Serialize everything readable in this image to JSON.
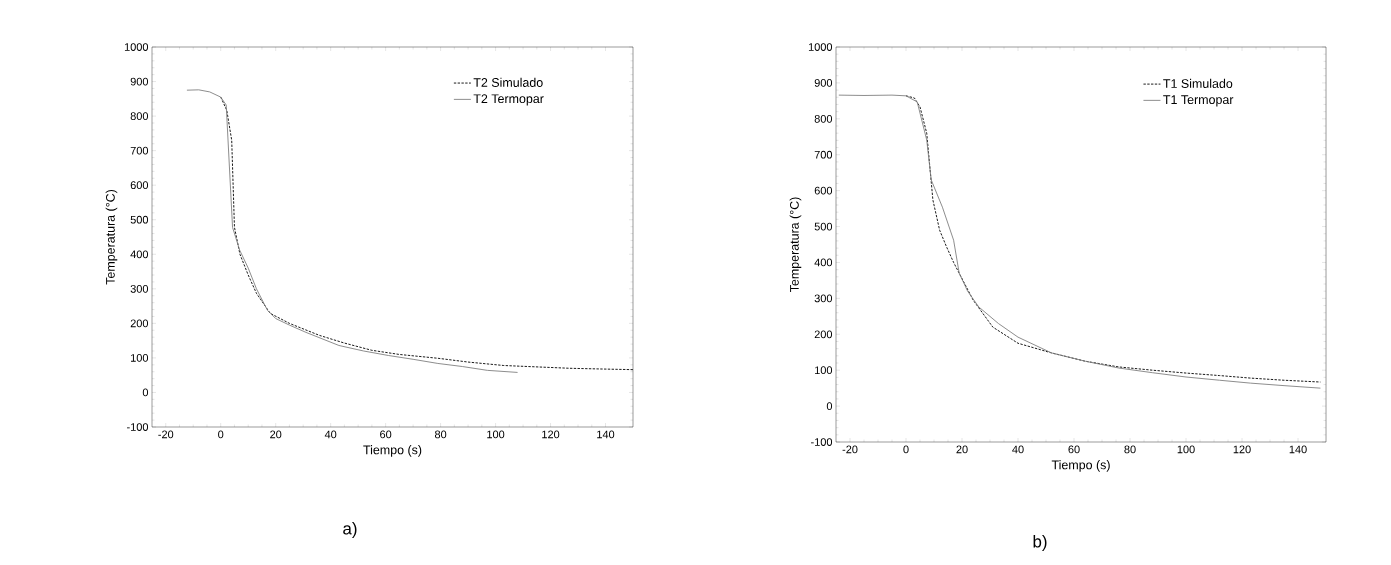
{
  "chart_data": [
    {
      "type": "line",
      "xlabel": "Tiempo (s)",
      "ylabel": "Temperatura (°C)",
      "annotations": [
        "a)"
      ],
      "xlim": [
        -25,
        150
      ],
      "ylim": [
        -100,
        1000
      ],
      "xticks": [
        -20,
        0,
        20,
        40,
        60,
        80,
        100,
        120,
        140
      ],
      "yticks": [
        -100,
        0,
        100,
        200,
        300,
        400,
        500,
        600,
        700,
        800,
        900,
        1000
      ],
      "legend": "top right",
      "grid": false,
      "series": [
        {
          "name": "T2 Simulado",
          "color": "#000000",
          "line_style": "dashed",
          "x": [
            0,
            2.2,
            4,
            5,
            7,
            10,
            13,
            18,
            25,
            36,
            45,
            55,
            65,
            79,
            90,
            103,
            115,
            127,
            138,
            150
          ],
          "values": [
            855,
            817,
            730,
            478,
            400,
            340,
            287,
            229,
            200,
            165,
            143,
            122,
            110,
            99,
            88,
            78,
            74,
            70,
            68,
            66
          ]
        },
        {
          "name": "T2 Termopar",
          "color": "#808080",
          "line_style": "solid",
          "x": [
            -12.3,
            -8,
            -4,
            0,
            2,
            4.3,
            6.9,
            10,
            13,
            17,
            20,
            25,
            31,
            43,
            52,
            61,
            70,
            79,
            88,
            97,
            108
          ],
          "values": [
            875,
            876,
            870,
            855,
            832,
            478,
            412,
            360,
            300,
            238,
            214,
            195,
            174,
            136,
            120,
            107,
            96,
            84,
            75,
            64,
            58
          ]
        }
      ]
    },
    {
      "type": "line",
      "xlabel": "Tiempo (s)",
      "ylabel": "Temperatura (°C)",
      "annotations": [
        "b)"
      ],
      "xlim": [
        -25,
        150
      ],
      "ylim": [
        -100,
        1000
      ],
      "xticks": [
        -20,
        0,
        20,
        40,
        60,
        80,
        100,
        120,
        140
      ],
      "yticks": [
        -100,
        0,
        100,
        200,
        300,
        400,
        500,
        600,
        700,
        800,
        900,
        1000
      ],
      "legend": "top right",
      "grid": false,
      "series": [
        {
          "name": "T1 Simulado",
          "color": "#000000",
          "line_style": "dashed",
          "x": [
            0,
            3,
            5,
            7.4,
            9.6,
            12,
            14.5,
            17,
            19,
            24,
            31,
            40,
            52,
            64,
            76,
            88,
            100,
            112,
            123,
            135,
            148
          ],
          "values": [
            864,
            858,
            833,
            760,
            574,
            490,
            443,
            400,
            370,
            295,
            220,
            175,
            148,
            125,
            109,
            100,
            92,
            85,
            78,
            72,
            67
          ]
        },
        {
          "name": "T1 Termopar",
          "color": "#808080",
          "line_style": "solid",
          "x": [
            -24,
            -15,
            -5,
            0,
            4,
            7.4,
            9,
            13,
            17,
            19,
            22,
            26,
            33,
            40,
            52,
            64,
            76,
            88,
            100,
            112,
            123,
            135,
            148
          ],
          "values": [
            866,
            865,
            866,
            864,
            847,
            741,
            630,
            554,
            462,
            370,
            320,
            276,
            230,
            192,
            148,
            125,
            106,
            93,
            81,
            72,
            64,
            57,
            50
          ]
        }
      ]
    }
  ]
}
